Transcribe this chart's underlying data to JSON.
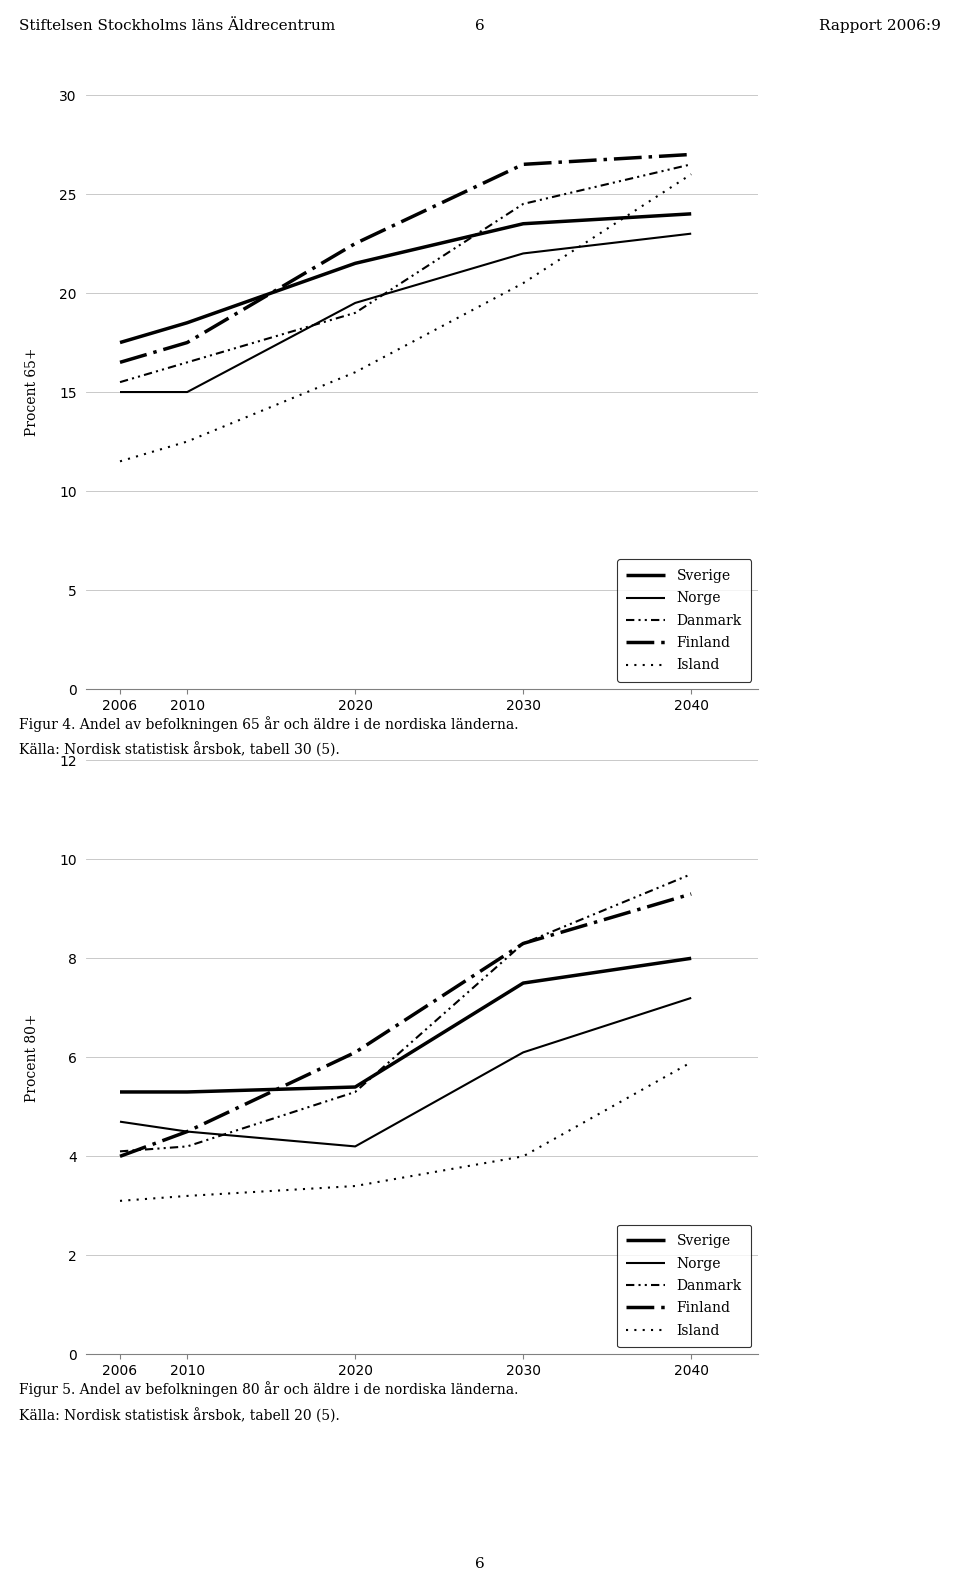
{
  "header_left": "Stiftelsen Stockholms läns Äldrecentrum",
  "header_center": "6",
  "header_right": "Rapport 2006:9",
  "footer_center": "6",
  "fig1": {
    "ylabel": "Procent 65+",
    "yticks": [
      0,
      5,
      10,
      15,
      20,
      25,
      30
    ],
    "ylim": [
      0,
      30
    ],
    "xticks": [
      2006,
      2010,
      2020,
      2030,
      2040
    ],
    "xlim": [
      2004,
      2044
    ],
    "caption_line1": "Figur 4. Andel av befolkningen 65 år och äldre i de nordiska länderna.",
    "caption_line2": "Källa: Nordisk statistisk årsbok, tabell 30 (5).",
    "series": {
      "Sverige": {
        "x": [
          2006,
          2010,
          2020,
          2030,
          2040
        ],
        "y": [
          17.5,
          18.5,
          21.5,
          23.5,
          24.0
        ]
      },
      "Norge": {
        "x": [
          2006,
          2010,
          2020,
          2030,
          2040
        ],
        "y": [
          15.0,
          15.0,
          19.5,
          22.0,
          23.0
        ]
      },
      "Danmark": {
        "x": [
          2006,
          2010,
          2020,
          2030,
          2040
        ],
        "y": [
          15.5,
          16.5,
          19.0,
          24.5,
          26.5
        ]
      },
      "Finland": {
        "x": [
          2006,
          2010,
          2020,
          2030,
          2040
        ],
        "y": [
          16.5,
          17.5,
          22.5,
          26.5,
          27.0
        ]
      },
      "Island": {
        "x": [
          2006,
          2010,
          2020,
          2030,
          2040
        ],
        "y": [
          11.5,
          12.5,
          16.0,
          20.5,
          26.0
        ]
      }
    }
  },
  "fig2": {
    "ylabel": "Procent 80+",
    "yticks": [
      0,
      2,
      4,
      6,
      8,
      10,
      12
    ],
    "ylim": [
      0,
      12
    ],
    "xticks": [
      2006,
      2010,
      2020,
      2030,
      2040
    ],
    "xlim": [
      2004,
      2044
    ],
    "caption_line1": "Figur 5. Andel av befolkningen 80 år och äldre i de nordiska länderna.",
    "caption_line2": "Källa: Nordisk statistisk årsbok, tabell 20 (5).",
    "series": {
      "Sverige": {
        "x": [
          2006,
          2010,
          2020,
          2030,
          2040
        ],
        "y": [
          5.3,
          5.3,
          5.4,
          7.5,
          8.0
        ]
      },
      "Norge": {
        "x": [
          2006,
          2010,
          2020,
          2030,
          2040
        ],
        "y": [
          4.7,
          4.5,
          4.2,
          6.1,
          7.2
        ]
      },
      "Danmark": {
        "x": [
          2006,
          2010,
          2020,
          2030,
          2040
        ],
        "y": [
          4.1,
          4.2,
          5.3,
          8.3,
          9.7
        ]
      },
      "Finland": {
        "x": [
          2006,
          2010,
          2020,
          2030,
          2040
        ],
        "y": [
          4.0,
          4.5,
          6.1,
          8.3,
          9.3
        ]
      },
      "Island": {
        "x": [
          2006,
          2010,
          2020,
          2030,
          2040
        ],
        "y": [
          3.1,
          3.2,
          3.4,
          4.0,
          5.9
        ]
      }
    }
  },
  "series_order": [
    "Sverige",
    "Norge",
    "Danmark",
    "Finland",
    "Island"
  ],
  "linestyle_map": {
    "Sverige": [
      "solid_thick",
      2.5
    ],
    "Norge": [
      "solid_thin",
      1.5
    ],
    "Danmark": [
      "dash_dot_dot",
      1.5
    ],
    "Finland": [
      "long_dash_dot",
      2.5
    ],
    "Island": [
      "loosely_dotted",
      1.5
    ]
  }
}
